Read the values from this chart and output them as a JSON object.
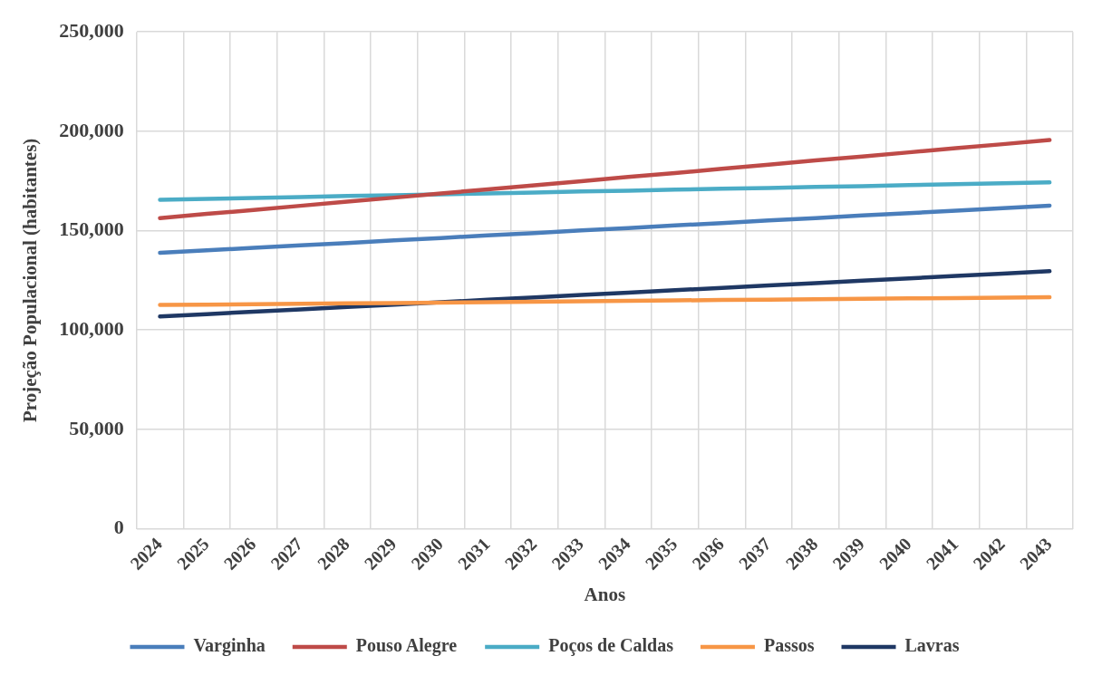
{
  "chart_data": {
    "type": "line",
    "xlabel": "Anos",
    "ylabel": "Projeção Populacional (habitantes)",
    "categories": [
      "2024",
      "2025",
      "2026",
      "2027",
      "2028",
      "2029",
      "2030",
      "2031",
      "2032",
      "2033",
      "2034",
      "2035",
      "2036",
      "2037",
      "2038",
      "2039",
      "2040",
      "2041",
      "2042",
      "2043"
    ],
    "series": [
      {
        "name": "Varginha",
        "color": "#4a7ebb",
        "values": [
          138800,
          140100,
          141300,
          142600,
          143800,
          145100,
          146300,
          147600,
          148800,
          150100,
          151300,
          152600,
          153800,
          155100,
          156300,
          157600,
          158800,
          160100,
          161300,
          162600
        ]
      },
      {
        "name": "Pouso Alegre",
        "color": "#be4b48",
        "values": [
          156300,
          158400,
          160400,
          162500,
          164600,
          166600,
          168700,
          170800,
          172800,
          174900,
          177000,
          179000,
          181100,
          183200,
          185300,
          187300,
          189400,
          191500,
          193500,
          195600
        ]
      },
      {
        "name": "Poços de Caldas",
        "color": "#4bacc6",
        "values": [
          165500,
          166000,
          166400,
          166900,
          167400,
          167800,
          168300,
          168700,
          169200,
          169700,
          170100,
          170600,
          171100,
          171500,
          172000,
          172400,
          172900,
          173400,
          173800,
          174300
        ]
      },
      {
        "name": "Passos",
        "color": "#f79646",
        "values": [
          112600,
          112800,
          113000,
          113200,
          113400,
          113600,
          113800,
          114000,
          114200,
          114400,
          114700,
          114900,
          115100,
          115300,
          115500,
          115700,
          115900,
          116100,
          116300,
          116500
        ]
      },
      {
        "name": "Lavras",
        "color": "#1f3864",
        "values": [
          106800,
          108000,
          109200,
          110400,
          111600,
          112800,
          114000,
          115200,
          116400,
          117600,
          118800,
          120000,
          121200,
          122400,
          123600,
          124800,
          126000,
          127200,
          128400,
          129600
        ]
      }
    ],
    "ylim": [
      0,
      250000
    ],
    "yticks": [
      {
        "value": 0,
        "label": "0"
      },
      {
        "value": 50000,
        "label": "50,000"
      },
      {
        "value": 100000,
        "label": "100,000"
      },
      {
        "value": 150000,
        "label": "150,000"
      },
      {
        "value": 200000,
        "label": "200,000"
      },
      {
        "value": 250000,
        "label": "250,000"
      }
    ],
    "grid": true,
    "legend": "bottom",
    "marker": "none",
    "line_style": "solid"
  }
}
